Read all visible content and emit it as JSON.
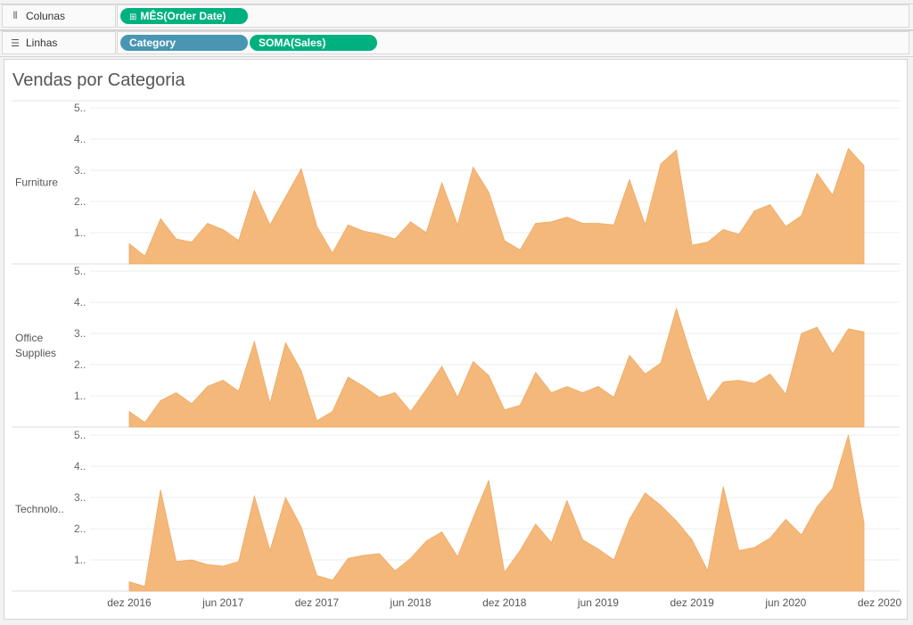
{
  "shelves": {
    "columns": {
      "label": "Colunas",
      "icon": "columns-icon",
      "pills": [
        {
          "prefix": "⊞",
          "text": "MÊS(Order Date)",
          "color": "#00b180"
        }
      ]
    },
    "rows": {
      "label": "Linhas",
      "icon": "rows-icon",
      "pills": [
        {
          "text": "Category",
          "color": "#4996b2"
        },
        {
          "text": "SOMA(Sales)",
          "color": "#00b180"
        }
      ]
    }
  },
  "view": {
    "title": "Vendas por Categoria"
  },
  "chart_data": {
    "type": "area",
    "title": "Vendas por Categoria",
    "x_tick_labels": [
      "dez 2016",
      "jun 2017",
      "dez 2017",
      "jun 2018",
      "dez 2018",
      "jun 2019",
      "dez 2019",
      "jun 2020",
      "dez 2020"
    ],
    "y_tick_labels": [
      "1..",
      "2..",
      "3..",
      "4..",
      "5.."
    ],
    "ylim": [
      0,
      5.2
    ],
    "fill_color": "#f4b87b",
    "grid": true,
    "series": [
      {
        "name": "Furniture",
        "row_label": [
          "Furniture"
        ],
        "values": [
          0.65,
          0.25,
          1.45,
          0.8,
          0.7,
          1.3,
          1.1,
          0.75,
          2.35,
          1.25,
          2.15,
          3.05,
          1.2,
          0.35,
          1.25,
          1.05,
          0.95,
          0.8,
          1.35,
          1.0,
          2.6,
          1.25,
          3.1,
          2.3,
          0.75,
          0.45,
          1.3,
          1.35,
          1.5,
          1.3,
          1.3,
          1.25,
          2.7,
          1.25,
          3.2,
          3.65,
          0.6,
          0.7,
          1.1,
          0.95,
          1.7,
          1.9,
          1.2,
          1.55,
          2.9,
          2.2,
          3.7,
          3.15
        ]
      },
      {
        "name": "Office Supplies",
        "row_label": [
          "Office",
          "Supplies"
        ],
        "values": [
          0.5,
          0.15,
          0.85,
          1.1,
          0.75,
          1.3,
          1.5,
          1.15,
          2.75,
          0.75,
          2.7,
          1.8,
          0.2,
          0.5,
          1.6,
          1.3,
          0.95,
          1.1,
          0.5,
          1.2,
          1.95,
          0.95,
          2.1,
          1.65,
          0.55,
          0.7,
          1.75,
          1.1,
          1.3,
          1.1,
          1.3,
          0.95,
          2.3,
          1.7,
          2.05,
          3.8,
          2.2,
          0.8,
          1.45,
          1.5,
          1.4,
          1.7,
          1.05,
          3.0,
          3.2,
          2.35,
          3.15,
          3.05
        ]
      },
      {
        "name": "Technology",
        "row_label": [
          "Technolo.."
        ],
        "values": [
          0.3,
          0.15,
          3.25,
          0.95,
          1.0,
          0.85,
          0.8,
          0.95,
          3.05,
          1.3,
          3.0,
          2.05,
          0.5,
          0.35,
          1.05,
          1.15,
          1.2,
          0.65,
          1.05,
          1.6,
          1.9,
          1.1,
          2.35,
          3.55,
          0.6,
          1.3,
          2.15,
          1.55,
          2.9,
          1.65,
          1.35,
          1.0,
          2.3,
          3.15,
          2.75,
          2.25,
          1.65,
          0.65,
          3.35,
          1.3,
          1.4,
          1.7,
          2.3,
          1.8,
          2.7,
          3.3,
          5.0,
          2.2
        ]
      }
    ]
  }
}
